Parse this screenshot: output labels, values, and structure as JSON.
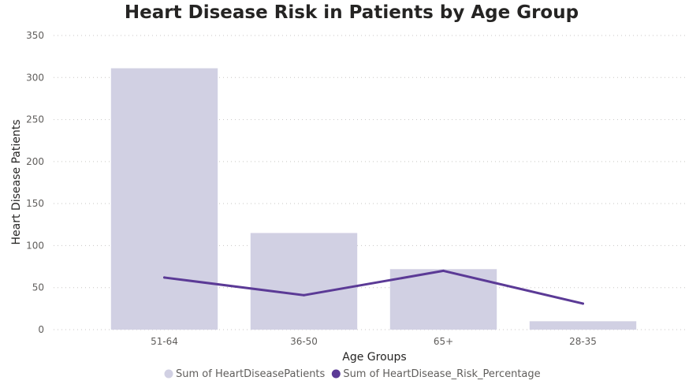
{
  "chart_data": {
    "type": "bar",
    "title": "Heart Disease Risk in Patients by Age Group",
    "xlabel": "Age Groups",
    "ylabel": "Heart Disease Patients",
    "categories": [
      "51-64",
      "36-50",
      "65+",
      "28-35"
    ],
    "ylim": [
      0,
      350
    ],
    "yticks": [
      0,
      50,
      100,
      150,
      200,
      250,
      300,
      350
    ],
    "grid": true,
    "legend_position": "bottom",
    "series": [
      {
        "name": "Sum of HeartDiseasePatients",
        "type": "bar",
        "values": [
          311,
          115,
          72,
          10
        ],
        "color": "#D1D0E3"
      },
      {
        "name": "Sum of HeartDisease_Risk_Percentage",
        "type": "line",
        "values": [
          62,
          41,
          70,
          31
        ],
        "color": "#5B3A96"
      }
    ]
  }
}
